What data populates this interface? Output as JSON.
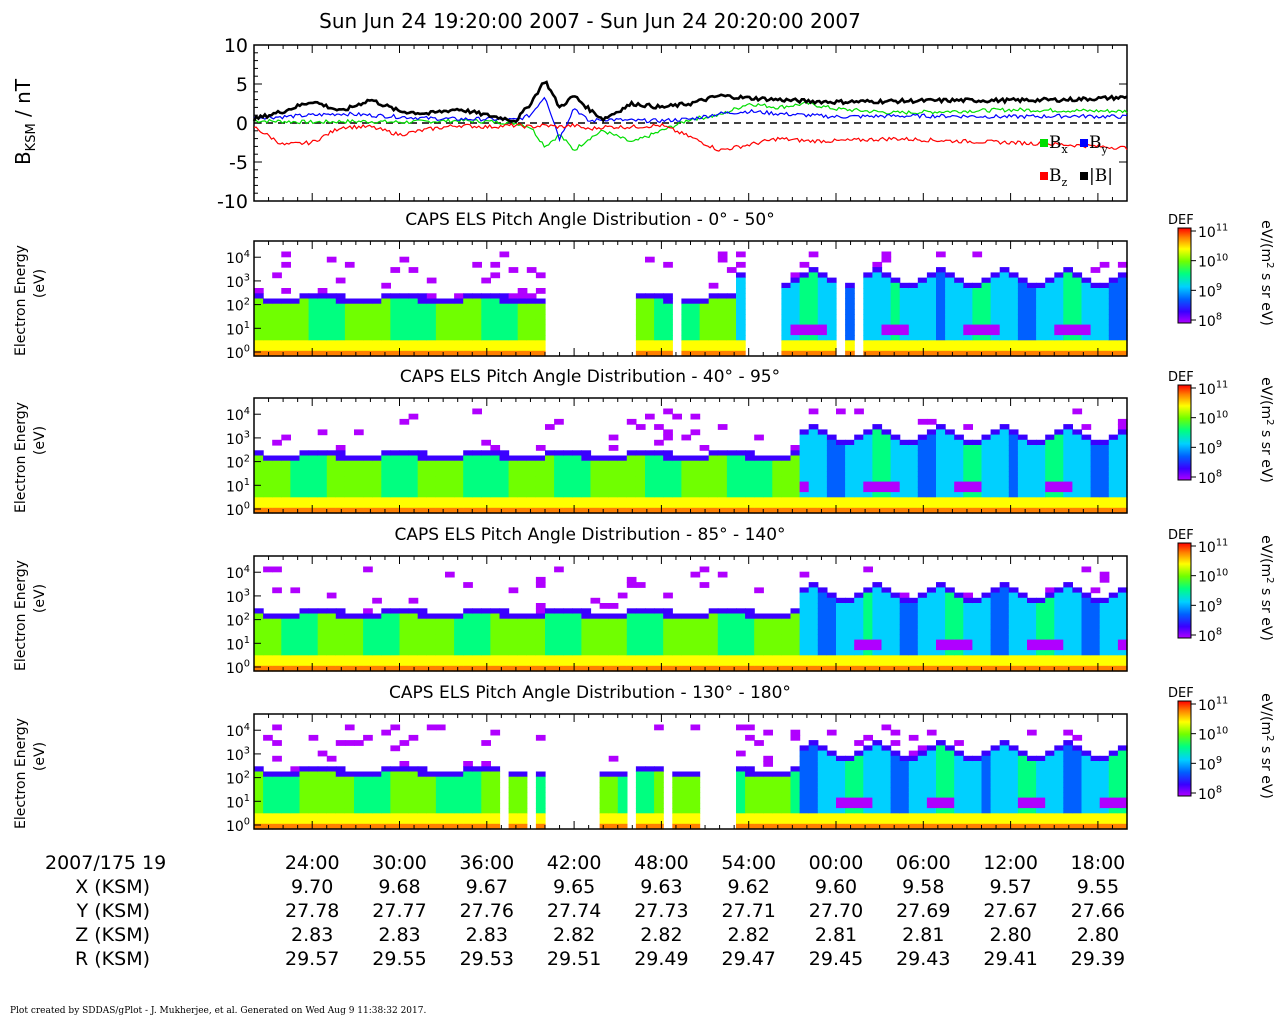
{
  "title": "Sun Jun 24 19:20:00 2007 - Sun Jun 24 20:20:00 2007",
  "footer": "Plot created by SDDAS/gPlot - J. Mukherjee, et al.  Generated on Wed Aug 9 11:38:32 2017.",
  "colors": {
    "bx": "#00dd00",
    "by": "#0000ff",
    "bz": "#ff0000",
    "btot": "#000000"
  },
  "ephemeris": {
    "start_label": "2007/175 19",
    "time_labels": [
      "24:00",
      "30:00",
      "36:00",
      "42:00",
      "48:00",
      "54:00",
      "00:00",
      "06:00",
      "12:00",
      "18:00"
    ],
    "rows": [
      {
        "label": "X (KSM)",
        "values": [
          "9.70",
          "9.68",
          "9.67",
          "9.65",
          "9.63",
          "9.62",
          "9.60",
          "9.58",
          "9.57",
          "9.55"
        ]
      },
      {
        "label": "Y (KSM)",
        "values": [
          "27.78",
          "27.77",
          "27.76",
          "27.74",
          "27.73",
          "27.71",
          "27.70",
          "27.69",
          "27.67",
          "27.66"
        ]
      },
      {
        "label": "Z (KSM)",
        "values": [
          "2.83",
          "2.83",
          "2.83",
          "2.82",
          "2.82",
          "2.82",
          "2.81",
          "2.81",
          "2.80",
          "2.80"
        ]
      },
      {
        "label": "R (KSM)",
        "values": [
          "29.57",
          "29.55",
          "29.53",
          "29.51",
          "29.49",
          "29.47",
          "29.45",
          "29.43",
          "29.41",
          "29.39"
        ]
      }
    ]
  },
  "chart_data": [
    {
      "type": "line",
      "ylabel_main": "B",
      "ylabel_sub": "KSM",
      "ylabel_unit": " / nT",
      "ylim": [
        -10,
        10
      ],
      "yticks": [
        "10",
        "5",
        "0",
        "-5",
        "-10"
      ],
      "time_range_minutes": [
        0,
        60
      ],
      "zero_line": "dashed",
      "legend_placement": "lower-right",
      "x_minutes": [
        0,
        2,
        4,
        6,
        8,
        10,
        12,
        14,
        16,
        18,
        19,
        20,
        21,
        22,
        23,
        24,
        26,
        28,
        30,
        32,
        34,
        36,
        38,
        40,
        44,
        48,
        52,
        56,
        60
      ],
      "series": [
        {
          "name": "Bx",
          "name_main": "B",
          "name_sub": "x",
          "color_key": "bx",
          "values": [
            0.3,
            0.2,
            0.1,
            0.2,
            0.2,
            0.1,
            0.2,
            0.3,
            0.2,
            0.0,
            -0.5,
            -3,
            -1.5,
            -3.5,
            -2,
            -1.0,
            -2.5,
            -1.0,
            0.5,
            1.0,
            2.5,
            2.0,
            2.5,
            1.8,
            1.3,
            1.5,
            1.7,
            1.6,
            1.5
          ]
        },
        {
          "name": "By",
          "name_main": "B",
          "name_sub": "y",
          "color_key": "by",
          "values": [
            0.7,
            0.8,
            1.0,
            1.2,
            1.0,
            0.8,
            0.6,
            0.5,
            0.5,
            0.4,
            1.0,
            3.5,
            -2,
            2,
            0.2,
            0.5,
            0.3,
            0.3,
            0.5,
            1.2,
            1.5,
            1.2,
            1.0,
            0.8,
            0.9,
            0.9,
            0.8,
            0.9,
            0.8
          ]
        },
        {
          "name": "Bz",
          "name_main": "B",
          "name_sub": "z",
          "color_key": "bz",
          "values": [
            -0.5,
            -2.8,
            -2.5,
            -0.5,
            -0.5,
            -1.5,
            -0.8,
            -0.3,
            -0.5,
            -0.3,
            -0.5,
            -0.3,
            -0.5,
            -0.3,
            -0.8,
            -0.5,
            -0.5,
            -0.3,
            -1.8,
            -3.5,
            -2.8,
            -2.0,
            -2.3,
            -2.3,
            -2.0,
            -2.3,
            -2.5,
            -2.8,
            -3.2
          ]
        },
        {
          "name": "|B|",
          "name_main": "|B|",
          "name_sub": "",
          "color_key": "btot",
          "values": [
            0.5,
            1.5,
            2.8,
            1.5,
            3.0,
            1.5,
            1.2,
            1.8,
            1.0,
            0.3,
            2.5,
            5.5,
            2.0,
            3.5,
            1.8,
            0.5,
            2.5,
            2.0,
            2.5,
            3.5,
            3.2,
            3.0,
            2.8,
            2.7,
            2.8,
            2.9,
            2.9,
            3.0,
            3.3
          ]
        }
      ]
    },
    {
      "type": "heatmap",
      "title": "CAPS ELS Pitch Angle Distribution - 0° - 50°",
      "ylabel_line1": "Electron Energy",
      "ylabel_line2": "(eV)",
      "ylog": true,
      "yticks": [
        "10^4",
        "10^3",
        "10^2",
        "10^1",
        "10^0"
      ],
      "colorbar": {
        "label": "DEF",
        "unit": "eV/(m^2 s sr eV)",
        "ticks": [
          "10^11",
          "10^10",
          "10^9",
          "10^8"
        ]
      },
      "gaps_minutes": [
        [
          18.5,
          18.8
        ],
        [
          20.3,
          21.0
        ],
        [
          21.5,
          23.0
        ],
        [
          23.3,
          26.5
        ],
        [
          27.3,
          27.6
        ],
        [
          27.9,
          28.3
        ],
        [
          28.8,
          29.5
        ],
        [
          33.8,
          36.0
        ],
        [
          39.8,
          40.5
        ],
        [
          41.2,
          41.8
        ]
      ]
    },
    {
      "type": "heatmap",
      "title": "CAPS ELS Pitch Angle Distribution - 40° - 95°",
      "ylabel_line1": "Electron Energy",
      "ylabel_line2": "(eV)",
      "ylog": true,
      "yticks": [
        "10^4",
        "10^3",
        "10^2",
        "10^1",
        "10^0"
      ],
      "colorbar": {
        "label": "DEF",
        "unit": "eV/(m^2 s sr eV)",
        "ticks": [
          "10^11",
          "10^10",
          "10^9",
          "10^8"
        ]
      },
      "gaps_minutes": []
    },
    {
      "type": "heatmap",
      "title": "CAPS ELS Pitch Angle Distribution - 85° - 140°",
      "ylabel_line1": "Electron Energy",
      "ylabel_line2": "(eV)",
      "ylog": true,
      "yticks": [
        "10^4",
        "10^3",
        "10^2",
        "10^1",
        "10^0"
      ],
      "colorbar": {
        "label": "DEF",
        "unit": "eV/(m^2 s sr eV)",
        "ticks": [
          "10^11",
          "10^10",
          "10^9",
          "10^8"
        ]
      },
      "gaps_minutes": []
    },
    {
      "type": "heatmap",
      "title": "CAPS ELS Pitch Angle Distribution - 130° - 180°",
      "ylabel_line1": "Electron Energy",
      "ylabel_line2": "(eV)",
      "ylog": true,
      "yticks": [
        "10^4",
        "10^3",
        "10^2",
        "10^1",
        "10^0"
      ],
      "colorbar": {
        "label": "DEF",
        "unit": "eV/(m^2 s sr eV)",
        "ticks": [
          "10^11",
          "10^10",
          "10^9",
          "10^8"
        ]
      },
      "gaps_minutes": [
        [
          17.0,
          17.5
        ],
        [
          18.5,
          19.5
        ],
        [
          20.3,
          23.5
        ],
        [
          25.5,
          26.5
        ],
        [
          28.0,
          29.0
        ],
        [
          30.5,
          33.3
        ]
      ]
    }
  ]
}
